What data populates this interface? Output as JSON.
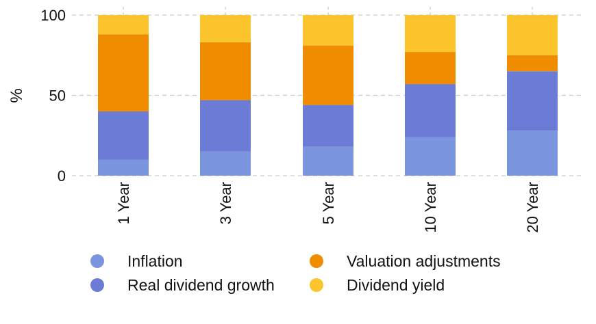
{
  "chart_data": {
    "type": "bar",
    "stacked": true,
    "title": "",
    "xlabel": "",
    "ylabel": "%",
    "ylim": [
      0,
      100
    ],
    "yticks": [
      0,
      50,
      100
    ],
    "grid": true,
    "legend_position": "bottom",
    "categories": [
      "1 Year",
      "3 Year",
      "5 Year",
      "10 Year",
      "20 Year"
    ],
    "series": [
      {
        "name": "Inflation",
        "color": "#7a94de",
        "values": [
          10,
          15,
          18,
          24,
          28
        ]
      },
      {
        "name": "Real dividend growth",
        "color": "#6b7bd6",
        "values": [
          30,
          32,
          26,
          33,
          37
        ]
      },
      {
        "name": "Valuation adjustments",
        "color": "#f08c00",
        "values": [
          48,
          36,
          37,
          20,
          10
        ]
      },
      {
        "name": "Dividend yield",
        "color": "#fcc42d",
        "values": [
          12,
          17,
          19,
          23,
          25
        ]
      }
    ]
  }
}
